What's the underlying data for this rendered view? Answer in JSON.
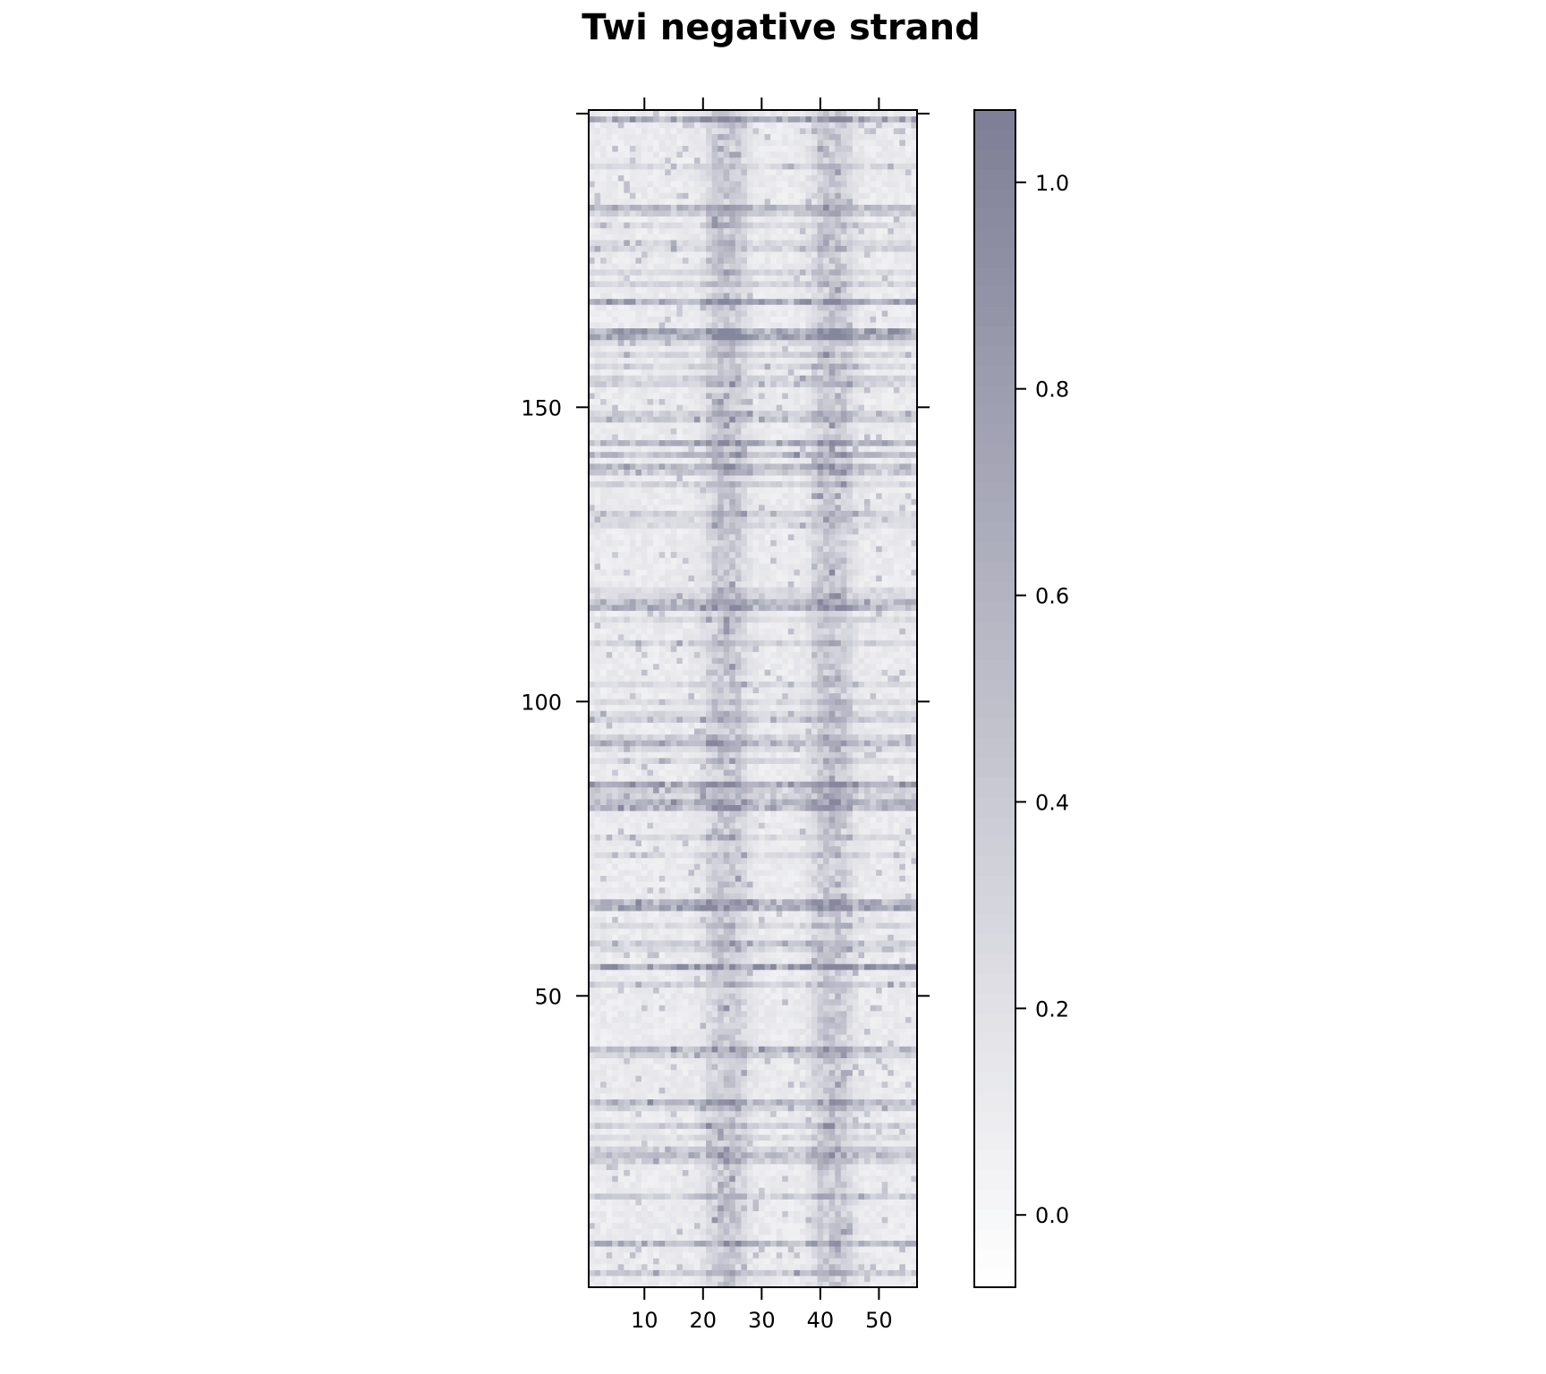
{
  "chart_data": {
    "type": "heatmap",
    "title": "Twi negative strand",
    "xlabel": "",
    "ylabel": "",
    "x_range": [
      1,
      56
    ],
    "y_range": [
      1,
      200
    ],
    "x_ticks": [
      10,
      20,
      30,
      40,
      50
    ],
    "x_tick_labels": [
      "10",
      "20",
      "30",
      "40",
      "50"
    ],
    "y_ticks": [
      50,
      100,
      150
    ],
    "y_tick_labels": [
      "50",
      "100",
      "150"
    ],
    "colorbar": {
      "range": [
        -0.07,
        1.07
      ],
      "ticks": [
        0.0,
        0.2,
        0.4,
        0.6,
        0.8,
        1.0
      ],
      "tick_labels": [
        "0.0",
        "0.2",
        "0.4",
        "0.6",
        "0.8",
        "1.0"
      ],
      "low_color": "#ffffff",
      "high_color": "#7e7f96"
    },
    "ncols": 56,
    "nrows": 200,
    "column_profile_centers": [
      23,
      24,
      25,
      41,
      42,
      43
    ],
    "dark_rows": [
      8,
      23,
      32,
      41,
      55,
      65,
      66,
      82,
      83,
      86,
      93,
      116,
      117,
      140,
      142,
      144,
      162,
      163,
      168,
      184,
      199
    ],
    "note": "Cell values estimated from visual shading; intensity concentrates near columns 22-26 and 40-44."
  },
  "colors": {
    "axis": "#000000",
    "background": "#ffffff"
  }
}
